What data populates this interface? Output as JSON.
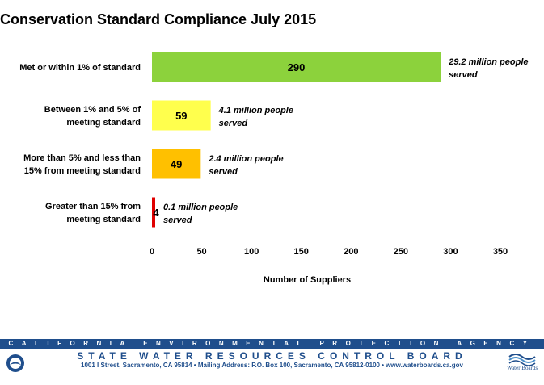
{
  "chart_data": {
    "type": "bar",
    "orientation": "horizontal",
    "title": "Conservation Standard Compliance July 2015",
    "xlabel": "Number of Suppliers",
    "ylabel": "",
    "xlim": [
      0,
      350
    ],
    "xticks": [
      "0",
      "50",
      "100",
      "150",
      "200",
      "250",
      "300",
      "350"
    ],
    "grid": false,
    "categories": [
      [
        "Met or within 1% of standard"
      ],
      [
        "Between 1% and 5% of",
        "meeting standard"
      ],
      [
        "More than 5% and less than",
        "15% from meeting standard"
      ],
      [
        "Greater than 15% from",
        "meeting standard"
      ]
    ],
    "values": [
      290,
      59,
      49,
      4
    ],
    "colors": [
      "#8cd23c",
      "#ffff4d",
      "#ffc000",
      "#e00000"
    ],
    "annotations": [
      [
        "29.2 million people",
        "served"
      ],
      [
        "4.1 million people",
        "served"
      ],
      [
        "2.4 million people",
        "served"
      ],
      [
        "0.1 million people",
        "served"
      ]
    ]
  },
  "footer": {
    "agency": "CALIFORNIA ENVIRONMENTAL PROTECTION AGENCY",
    "board": "STATE WATER RESOURCES CONTROL BOARD",
    "address": "1001 I Street, Sacramento, CA 95814 • Mailing Address: P.O. Box 100, Sacramento, CA 95812-0100 • www.waterboards.ca.gov",
    "logo_text": "Water Boards",
    "brand_color": "#1f4e8c"
  }
}
